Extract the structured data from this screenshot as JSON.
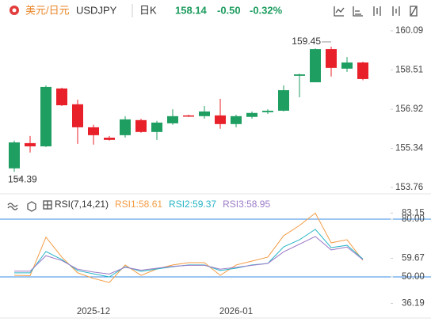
{
  "header": {
    "pair": "美元/日元",
    "symbol": "USDJPY",
    "period": "日K",
    "price": "158.14",
    "change": "-0.50",
    "change_pct": "-0.32%",
    "change_color": "#1c9c5e"
  },
  "chart_data": [
    {
      "type": "candlestick",
      "categories": [
        null,
        null,
        null,
        null,
        null,
        "2025-12",
        null,
        null,
        null,
        null,
        null,
        null,
        null,
        null,
        "2026-01",
        null,
        null,
        null,
        null,
        null,
        null,
        null,
        null
      ],
      "open": [
        154.53,
        155.55,
        155.42,
        157.76,
        157.12,
        156.19,
        155.77,
        155.87,
        156.48,
        156.0,
        156.35,
        156.67,
        156.64,
        156.67,
        156.32,
        156.61,
        156.8,
        156.86,
        158.27,
        158.01,
        159.35,
        158.56,
        158.81
      ],
      "high": [
        155.65,
        155.84,
        157.88,
        157.79,
        157.31,
        156.29,
        155.84,
        156.64,
        156.54,
        156.45,
        156.92,
        156.7,
        157.05,
        157.34,
        156.7,
        156.83,
        156.92,
        157.88,
        158.36,
        159.38,
        159.45,
        159.03,
        158.84
      ],
      "low": [
        154.39,
        155.17,
        155.39,
        157.05,
        155.52,
        155.49,
        155.65,
        155.77,
        155.97,
        155.68,
        156.29,
        156.61,
        156.54,
        156.13,
        156.19,
        156.54,
        156.73,
        156.83,
        157.4,
        158.01,
        158.24,
        158.43,
        158.09
      ],
      "close": [
        155.58,
        155.42,
        157.82,
        157.08,
        156.19,
        155.87,
        155.68,
        156.51,
        156.0,
        156.38,
        156.64,
        156.62,
        156.83,
        156.32,
        156.64,
        156.77,
        156.86,
        157.69,
        158.33,
        159.35,
        158.59,
        158.81,
        158.14
      ],
      "up_color": "#1f9e62",
      "down_color": "#e8202a",
      "ylim": [
        153.5,
        160.44
      ],
      "yticks": [
        160.09,
        158.51,
        156.92,
        155.34,
        153.76
      ],
      "annotations": [
        "159.45",
        "154.39"
      ]
    },
    {
      "type": "line",
      "title": "RSI(7,14,21)",
      "series": [
        {
          "name": "RSI1:58.61",
          "color": "#f39c45",
          "values": [
            50.8,
            50.6,
            70.6,
            60.3,
            52.1,
            49.2,
            47.1,
            56.2,
            50.8,
            54.1,
            56.2,
            57.4,
            57.4,
            50.8,
            56.2,
            58.2,
            60.3,
            71.4,
            76.7,
            83.15,
            67.7,
            69.3,
            58.61
          ]
        },
        {
          "name": "RSI2:59.37",
          "color": "#27b5c6",
          "values": [
            52.1,
            52.1,
            63.2,
            59.0,
            53.3,
            51.6,
            50.0,
            55.3,
            52.9,
            54.1,
            55.3,
            56.2,
            56.2,
            53.3,
            54.5,
            56.2,
            57.0,
            65.6,
            69.3,
            74.7,
            65.2,
            66.4,
            59.37
          ]
        },
        {
          "name": "RSI3:58.95",
          "color": "#9b7bc8",
          "values": [
            53.0,
            53.0,
            61.0,
            58.5,
            54.0,
            52.5,
            51.5,
            55.0,
            53.5,
            54.5,
            55.5,
            56.0,
            56.0,
            54.0,
            55.0,
            56.0,
            57.0,
            63.0,
            67.0,
            71.0,
            64.0,
            65.5,
            58.95
          ]
        }
      ],
      "ylim": [
        29.45,
        84.93
      ],
      "yticks": [
        83.15,
        {
          "value": 80,
          "label": "80.00"
        },
        59.67,
        {
          "value": 50,
          "label": "50.00"
        },
        36.19
      ],
      "ref_lines": [
        {
          "value": 80,
          "label": "80.00"
        },
        {
          "value": 50,
          "label": "50.00"
        }
      ],
      "ref_color": "#3a8ee6"
    }
  ]
}
